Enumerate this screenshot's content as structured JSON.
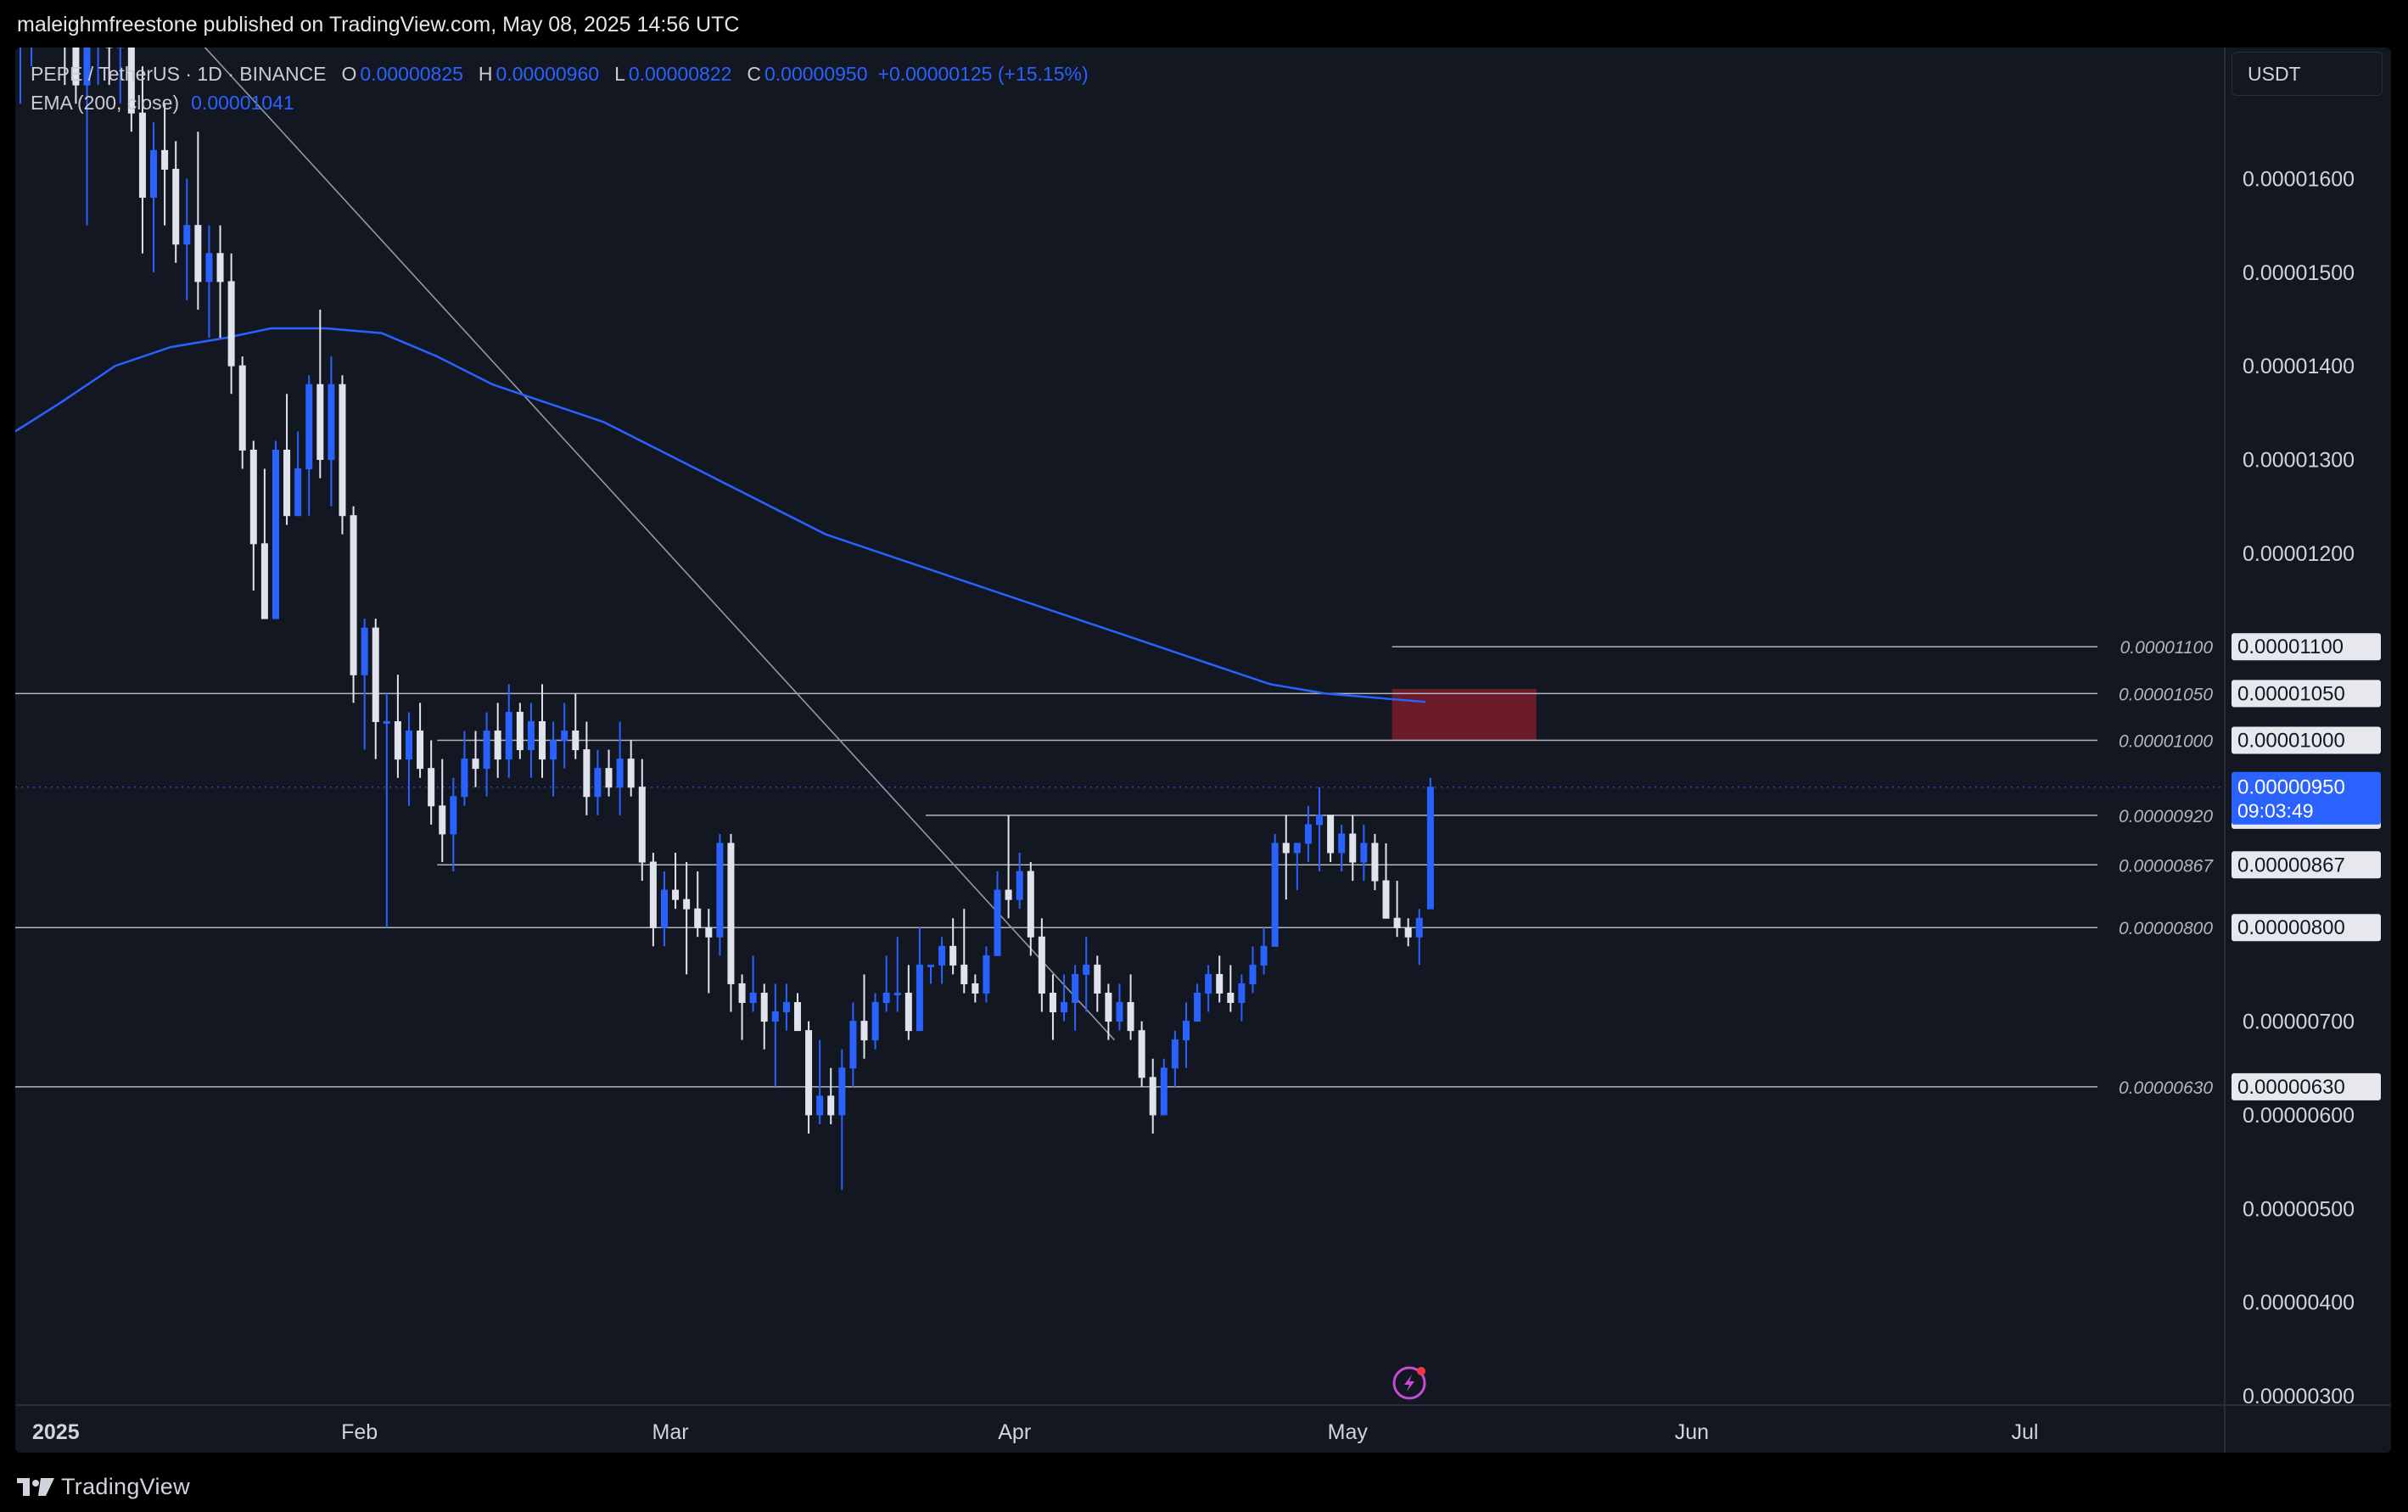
{
  "header": {
    "publisher_line": "maleighmfreestone published on TradingView.com, May 08, 2025 14:56 UTC"
  },
  "legend": {
    "symbol": "PEPE / TetherUS · 1D · BINANCE",
    "open_label": "O",
    "open_value": "0.00000825",
    "high_label": "H",
    "high_value": "0.00000960",
    "low_label": "L",
    "low_value": "0.00000822",
    "close_label": "C",
    "close_value": "0.00000950",
    "change": "+0.00000125 (+15.15%)",
    "ema_label": "EMA (200, close)",
    "ema_value": "0.00001041"
  },
  "currency_button": "USDT",
  "footer": {
    "brand": "TradingView"
  },
  "colors": {
    "background": "#131722",
    "up_candle": "#2962ff",
    "down_candle": "#e0e3eb",
    "ema": "#2962ff",
    "level_line": "#9598a1",
    "zone": "#8b1f2b",
    "price_tag": "#2962ff"
  },
  "chart_data": {
    "type": "candlestick",
    "symbol": "PEPE / TetherUS",
    "interval": "1D",
    "exchange": "BINANCE",
    "ylim": [
      2.9e-06,
      1.74e-05
    ],
    "x_range": [
      "2025-01-01",
      "2025-07-19"
    ],
    "y_ticks": [
      "0.00001600",
      "0.00001500",
      "0.00001400",
      "0.00001300",
      "0.00001200",
      "0.00000700",
      "0.00000600",
      "0.00000500",
      "0.00000400",
      "0.00000300"
    ],
    "x_ticks": [
      {
        "date": "2025-01-01",
        "label": "2025"
      },
      {
        "date": "2025-02-01",
        "label": "Feb"
      },
      {
        "date": "2025-03-01",
        "label": "Mar"
      },
      {
        "date": "2025-04-01",
        "label": "Apr"
      },
      {
        "date": "2025-05-01",
        "label": "May"
      },
      {
        "date": "2025-06-01",
        "label": "Jun"
      },
      {
        "date": "2025-07-01",
        "label": "Jul"
      }
    ],
    "horizontal_levels": [
      {
        "value": 1.1e-05,
        "label": "0.00001100",
        "start": "2025-05-05"
      },
      {
        "value": 1.05e-05,
        "label": "0.00001050",
        "start": "2025-01-01"
      },
      {
        "value": 1e-05,
        "label": "0.00001000",
        "start": "2025-02-08"
      },
      {
        "value": 9.2e-06,
        "label": "0.00000920",
        "start": "2025-03-24"
      },
      {
        "value": 8.67e-06,
        "label": "0.00000867",
        "start": "2025-02-08"
      },
      {
        "value": 8e-06,
        "label": "0.00000800",
        "start": "2025-01-01"
      },
      {
        "value": 6.3e-06,
        "label": "0.00000630",
        "start": "2025-01-01"
      }
    ],
    "zone": {
      "start": "2025-05-05",
      "end": "2025-05-18",
      "top": 1.055e-05,
      "bottom": 1e-05
    },
    "trendline": {
      "start": {
        "date": "2025-01-15",
        "value": 1.78e-05
      },
      "end": {
        "date": "2025-04-10",
        "value": 6.8e-06
      }
    },
    "ema_200": [
      [
        "2025-01-01",
        1.33e-05
      ],
      [
        "2025-01-05",
        1.36e-05
      ],
      [
        "2025-01-10",
        1.4e-05
      ],
      [
        "2025-01-15",
        1.42e-05
      ],
      [
        "2025-01-20",
        1.43e-05
      ],
      [
        "2025-01-24",
        1.44e-05
      ],
      [
        "2025-01-29",
        1.44e-05
      ],
      [
        "2025-02-03",
        1.435e-05
      ],
      [
        "2025-02-08",
        1.41e-05
      ],
      [
        "2025-02-13",
        1.38e-05
      ],
      [
        "2025-02-18",
        1.36e-05
      ],
      [
        "2025-02-23",
        1.34e-05
      ],
      [
        "2025-02-28",
        1.31e-05
      ],
      [
        "2025-03-05",
        1.28e-05
      ],
      [
        "2025-03-10",
        1.25e-05
      ],
      [
        "2025-03-15",
        1.22e-05
      ],
      [
        "2025-03-20",
        1.2e-05
      ],
      [
        "2025-03-25",
        1.18e-05
      ],
      [
        "2025-03-30",
        1.16e-05
      ],
      [
        "2025-04-04",
        1.14e-05
      ],
      [
        "2025-04-09",
        1.12e-05
      ],
      [
        "2025-04-14",
        1.1e-05
      ],
      [
        "2025-04-19",
        1.08e-05
      ],
      [
        "2025-04-24",
        1.06e-05
      ],
      [
        "2025-04-29",
        1.05e-05
      ],
      [
        "2025-05-04",
        1.045e-05
      ],
      [
        "2025-05-08",
        1.041e-05
      ]
    ],
    "last_price": {
      "value": "0.00000950",
      "countdown": "09:03:49"
    },
    "candles": [
      [
        "2025-01-01",
        1.75e-05,
        1.82e-05,
        1.68e-05,
        1.78e-05
      ],
      [
        "2025-01-02",
        1.78e-05,
        1.85e-05,
        1.72e-05,
        1.8e-05
      ],
      [
        "2025-01-03",
        1.8e-05,
        1.88e-05,
        1.75e-05,
        1.83e-05
      ],
      [
        "2025-01-04",
        1.83e-05,
        1.86e-05,
        1.74e-05,
        1.77e-05
      ],
      [
        "2025-01-05",
        1.77e-05,
        1.84e-05,
        1.7e-05,
        1.75e-05
      ],
      [
        "2025-01-06",
        1.75e-05,
        1.82e-05,
        1.68e-05,
        1.7e-05
      ],
      [
        "2025-01-07",
        1.7e-05,
        1.76e-05,
        1.55e-05,
        1.76e-05
      ],
      [
        "2025-01-08",
        1.76e-05,
        1.82e-05,
        1.7e-05,
        1.78e-05
      ],
      [
        "2025-01-09",
        1.78e-05,
        1.83e-05,
        1.7e-05,
        1.74e-05
      ],
      [
        "2025-01-10",
        1.74e-05,
        1.8e-05,
        1.68e-05,
        1.78e-05
      ],
      [
        "2025-01-11",
        1.78e-05,
        1.85e-05,
        1.65e-05,
        1.67e-05
      ],
      [
        "2025-01-12",
        1.67e-05,
        1.72e-05,
        1.52e-05,
        1.58e-05
      ],
      [
        "2025-01-13",
        1.58e-05,
        1.66e-05,
        1.5e-05,
        1.63e-05
      ],
      [
        "2025-01-14",
        1.63e-05,
        1.68e-05,
        1.55e-05,
        1.61e-05
      ],
      [
        "2025-01-15",
        1.61e-05,
        1.64e-05,
        1.51e-05,
        1.53e-05
      ],
      [
        "2025-01-16",
        1.53e-05,
        1.6e-05,
        1.47e-05,
        1.55e-05
      ],
      [
        "2025-01-17",
        1.55e-05,
        1.65e-05,
        1.46e-05,
        1.49e-05
      ],
      [
        "2025-01-18",
        1.49e-05,
        1.55e-05,
        1.43e-05,
        1.52e-05
      ],
      [
        "2025-01-19",
        1.52e-05,
        1.55e-05,
        1.43e-05,
        1.49e-05
      ],
      [
        "2025-01-20",
        1.49e-05,
        1.52e-05,
        1.37e-05,
        1.4e-05
      ],
      [
        "2025-01-21",
        1.4e-05,
        1.41e-05,
        1.29e-05,
        1.31e-05
      ],
      [
        "2025-01-22",
        1.31e-05,
        1.32e-05,
        1.16e-05,
        1.21e-05
      ],
      [
        "2025-01-23",
        1.21e-05,
        1.29e-05,
        1.13e-05,
        1.13e-05
      ],
      [
        "2025-01-24",
        1.13e-05,
        1.32e-05,
        1.13e-05,
        1.31e-05
      ],
      [
        "2025-01-25",
        1.31e-05,
        1.37e-05,
        1.23e-05,
        1.24e-05
      ],
      [
        "2025-01-26",
        1.24e-05,
        1.33e-05,
        1.24e-05,
        1.29e-05
      ],
      [
        "2025-01-27",
        1.29e-05,
        1.39e-05,
        1.24e-05,
        1.38e-05
      ],
      [
        "2025-01-28",
        1.38e-05,
        1.46e-05,
        1.28e-05,
        1.3e-05
      ],
      [
        "2025-01-29",
        1.3e-05,
        1.41e-05,
        1.25e-05,
        1.38e-05
      ],
      [
        "2025-01-30",
        1.38e-05,
        1.39e-05,
        1.22e-05,
        1.24e-05
      ],
      [
        "2025-01-31",
        1.24e-05,
        1.25e-05,
        1.04e-05,
        1.07e-05
      ],
      [
        "2025-02-01",
        1.07e-05,
        1.13e-05,
        9.9e-06,
        1.12e-05
      ],
      [
        "2025-02-02",
        1.12e-05,
        1.13e-05,
        9.8e-06,
        1.02e-05
      ],
      [
        "2025-02-03",
        1.02e-05,
        1.05e-05,
        8e-06,
        1.02e-05
      ],
      [
        "2025-02-04",
        1.02e-05,
        1.07e-05,
        9.6e-06,
        9.8e-06
      ],
      [
        "2025-02-05",
        9.8e-06,
        1.03e-05,
        9.3e-06,
        1.01e-05
      ],
      [
        "2025-02-06",
        1.01e-05,
        1.04e-05,
        9.6e-06,
        9.7e-06
      ],
      [
        "2025-02-07",
        9.7e-06,
        1e-05,
        9.1e-06,
        9.3e-06
      ],
      [
        "2025-02-08",
        9.3e-06,
        9.8e-06,
        8.7e-06,
        9e-06
      ],
      [
        "2025-02-09",
        9e-06,
        9.6e-06,
        8.6e-06,
        9.4e-06
      ],
      [
        "2025-02-10",
        9.4e-06,
        1.01e-05,
        9.3e-06,
        9.8e-06
      ],
      [
        "2025-02-11",
        9.8e-06,
        1.01e-05,
        9.5e-06,
        9.7e-06
      ],
      [
        "2025-02-12",
        9.7e-06,
        1.03e-05,
        9.4e-06,
        1.01e-05
      ],
      [
        "2025-02-13",
        1.01e-05,
        1.04e-05,
        9.6e-06,
        9.8e-06
      ],
      [
        "2025-02-14",
        9.8e-06,
        1.06e-05,
        9.6e-06,
        1.03e-05
      ],
      [
        "2025-02-15",
        1.03e-05,
        1.04e-05,
        9.8e-06,
        9.9e-06
      ],
      [
        "2025-02-16",
        9.9e-06,
        1.04e-05,
        9.6e-06,
        1.02e-05
      ],
      [
        "2025-02-17",
        1.02e-05,
        1.06e-05,
        9.6e-06,
        9.8e-06
      ],
      [
        "2025-02-18",
        9.8e-06,
        1.02e-05,
        9.4e-06,
        1e-05
      ],
      [
        "2025-02-19",
        1e-05,
        1.04e-05,
        9.7e-06,
        1.01e-05
      ],
      [
        "2025-02-20",
        1.01e-05,
        1.05e-05,
        9.8e-06,
        9.9e-06
      ],
      [
        "2025-02-21",
        9.9e-06,
        1.02e-05,
        9.2e-06,
        9.4e-06
      ],
      [
        "2025-02-22",
        9.4e-06,
        9.9e-06,
        9.2e-06,
        9.7e-06
      ],
      [
        "2025-02-23",
        9.7e-06,
        9.9e-06,
        9.4e-06,
        9.5e-06
      ],
      [
        "2025-02-24",
        9.5e-06,
        1.02e-05,
        9.2e-06,
        9.8e-06
      ],
      [
        "2025-02-25",
        9.8e-06,
        1e-05,
        9.4e-06,
        9.5e-06
      ],
      [
        "2025-02-26",
        9.5e-06,
        9.8e-06,
        8.5e-06,
        8.7e-06
      ],
      [
        "2025-02-27",
        8.7e-06,
        8.8e-06,
        7.8e-06,
        8e-06
      ],
      [
        "2025-02-28",
        8e-06,
        8.6e-06,
        7.8e-06,
        8.4e-06
      ],
      [
        "2025-03-01",
        8.4e-06,
        8.8e-06,
        8.2e-06,
        8.3e-06
      ],
      [
        "2025-03-02",
        8.3e-06,
        8.7e-06,
        7.5e-06,
        8.2e-06
      ],
      [
        "2025-03-03",
        8.2e-06,
        8.6e-06,
        7.9e-06,
        8e-06
      ],
      [
        "2025-03-04",
        8e-06,
        8.2e-06,
        7.3e-06,
        7.9e-06
      ],
      [
        "2025-03-05",
        7.9e-06,
        9e-06,
        7.7e-06,
        8.9e-06
      ],
      [
        "2025-03-06",
        8.9e-06,
        9e-06,
        7.1e-06,
        7.4e-06
      ],
      [
        "2025-03-07",
        7.4e-06,
        7.5e-06,
        6.8e-06,
        7.2e-06
      ],
      [
        "2025-03-08",
        7.2e-06,
        7.7e-06,
        7.1e-06,
        7.3e-06
      ],
      [
        "2025-03-09",
        7.3e-06,
        7.4e-06,
        6.7e-06,
        7e-06
      ],
      [
        "2025-03-10",
        7e-06,
        7.4e-06,
        6.3e-06,
        7.1e-06
      ],
      [
        "2025-03-11",
        7.1e-06,
        7.4e-06,
        6.9e-06,
        7.2e-06
      ],
      [
        "2025-03-12",
        7.2e-06,
        7.3e-06,
        6.9e-06,
        6.9e-06
      ],
      [
        "2025-03-13",
        6.9e-06,
        7e-06,
        5.8e-06,
        6e-06
      ],
      [
        "2025-03-14",
        6e-06,
        6.8e-06,
        5.9e-06,
        6.2e-06
      ],
      [
        "2025-03-15",
        6.2e-06,
        6.5e-06,
        5.9e-06,
        6e-06
      ],
      [
        "2025-03-16",
        6e-06,
        6.7e-06,
        5.2e-06,
        6.5e-06
      ],
      [
        "2025-03-17",
        6.5e-06,
        7.2e-06,
        6.3e-06,
        7e-06
      ],
      [
        "2025-03-18",
        7e-06,
        7.5e-06,
        6.6e-06,
        6.8e-06
      ],
      [
        "2025-03-19",
        6.8e-06,
        7.3e-06,
        6.7e-06,
        7.2e-06
      ],
      [
        "2025-03-20",
        7.2e-06,
        7.7e-06,
        7.1e-06,
        7.3e-06
      ],
      [
        "2025-03-21",
        7.3e-06,
        7.9e-06,
        7.1e-06,
        7.3e-06
      ],
      [
        "2025-03-22",
        7.3e-06,
        7.6e-06,
        6.8e-06,
        6.9e-06
      ],
      [
        "2025-03-23",
        6.9e-06,
        8e-06,
        6.9e-06,
        7.6e-06
      ],
      [
        "2025-03-24",
        7.6e-06,
        7.6e-06,
        7.4e-06,
        7.6e-06
      ],
      [
        "2025-03-25",
        7.6e-06,
        7.9e-06,
        7.4e-06,
        7.8e-06
      ],
      [
        "2025-03-26",
        7.8e-06,
        8.1e-06,
        7.5e-06,
        7.6e-06
      ],
      [
        "2025-03-27",
        7.6e-06,
        8.2e-06,
        7.3e-06,
        7.4e-06
      ],
      [
        "2025-03-28",
        7.4e-06,
        7.5e-06,
        7.2e-06,
        7.3e-06
      ],
      [
        "2025-03-29",
        7.3e-06,
        7.8e-06,
        7.2e-06,
        7.7e-06
      ],
      [
        "2025-03-30",
        7.7e-06,
        8.6e-06,
        7.7e-06,
        8.4e-06
      ],
      [
        "2025-03-31",
        8.4e-06,
        9.2e-06,
        8.1e-06,
        8.3e-06
      ],
      [
        "2025-04-01",
        8.3e-06,
        8.8e-06,
        8.2e-06,
        8.6e-06
      ],
      [
        "2025-04-02",
        8.6e-06,
        8.7e-06,
        7.7e-06,
        7.9e-06
      ],
      [
        "2025-04-03",
        7.9e-06,
        8.1e-06,
        7.1e-06,
        7.3e-06
      ],
      [
        "2025-04-04",
        7.3e-06,
        7.5e-06,
        6.8e-06,
        7.1e-06
      ],
      [
        "2025-04-05",
        7.1e-06,
        7.5e-06,
        7e-06,
        7.2e-06
      ],
      [
        "2025-04-06",
        7.2e-06,
        7.6e-06,
        6.9e-06,
        7.5e-06
      ],
      [
        "2025-04-07",
        7.5e-06,
        7.9e-06,
        7.1e-06,
        7.6e-06
      ],
      [
        "2025-04-08",
        7.6e-06,
        7.7e-06,
        7.1e-06,
        7.3e-06
      ],
      [
        "2025-04-09",
        7.3e-06,
        7.4e-06,
        6.8e-06,
        7e-06
      ],
      [
        "2025-04-10",
        7e-06,
        7.4e-06,
        6.9e-06,
        7.2e-06
      ],
      [
        "2025-04-11",
        7.2e-06,
        7.5e-06,
        6.8e-06,
        6.9e-06
      ],
      [
        "2025-04-12",
        6.9e-06,
        7e-06,
        6.3e-06,
        6.4e-06
      ],
      [
        "2025-04-13",
        6.4e-06,
        6.6e-06,
        5.8e-06,
        6e-06
      ],
      [
        "2025-04-14",
        6e-06,
        6.6e-06,
        6e-06,
        6.5e-06
      ],
      [
        "2025-04-15",
        6.5e-06,
        6.9e-06,
        6.3e-06,
        6.8e-06
      ],
      [
        "2025-04-16",
        6.8e-06,
        7.2e-06,
        6.5e-06,
        7e-06
      ],
      [
        "2025-04-17",
        7e-06,
        7.4e-06,
        7e-06,
        7.3e-06
      ],
      [
        "2025-04-18",
        7.3e-06,
        7.6e-06,
        7.1e-06,
        7.5e-06
      ],
      [
        "2025-04-19",
        7.5e-06,
        7.7e-06,
        7.2e-06,
        7.3e-06
      ],
      [
        "2025-04-20",
        7.3e-06,
        7.6e-06,
        7.1e-06,
        7.2e-06
      ],
      [
        "2025-04-21",
        7.2e-06,
        7.5e-06,
        7e-06,
        7.4e-06
      ],
      [
        "2025-04-22",
        7.4e-06,
        7.8e-06,
        7.3e-06,
        7.6e-06
      ],
      [
        "2025-04-23",
        7.6e-06,
        8e-06,
        7.5e-06,
        7.8e-06
      ],
      [
        "2025-04-24",
        7.8e-06,
        9e-06,
        7.8e-06,
        8.9e-06
      ],
      [
        "2025-04-25",
        8.9e-06,
        9.2e-06,
        8.3e-06,
        8.8e-06
      ],
      [
        "2025-04-26",
        8.8e-06,
        8.9e-06,
        8.4e-06,
        8.9e-06
      ],
      [
        "2025-04-27",
        8.9e-06,
        9.3e-06,
        8.7e-06,
        9.1e-06
      ],
      [
        "2025-04-28",
        9.1e-06,
        9.5e-06,
        8.6e-06,
        9.2e-06
      ],
      [
        "2025-04-29",
        9.2e-06,
        9.2e-06,
        8.7e-06,
        8.8e-06
      ],
      [
        "2025-04-30",
        8.8e-06,
        9.1e-06,
        8.6e-06,
        9e-06
      ],
      [
        "2025-05-01",
        9e-06,
        9.2e-06,
        8.5e-06,
        8.7e-06
      ],
      [
        "2025-05-02",
        8.7e-06,
        9.1e-06,
        8.5e-06,
        8.9e-06
      ],
      [
        "2025-05-03",
        8.9e-06,
        9e-06,
        8.4e-06,
        8.5e-06
      ],
      [
        "2025-05-04",
        8.5e-06,
        8.9e-06,
        8.1e-06,
        8.1e-06
      ],
      [
        "2025-05-05",
        8.1e-06,
        8.5e-06,
        7.9e-06,
        8e-06
      ],
      [
        "2025-05-06",
        8e-06,
        8.1e-06,
        7.8e-06,
        7.9e-06
      ],
      [
        "2025-05-07",
        7.9e-06,
        8.2e-06,
        7.6e-06,
        8.1e-06
      ],
      [
        "2025-05-08",
        8.2e-06,
        9.6e-06,
        8.2e-06,
        9.5e-06
      ]
    ]
  }
}
